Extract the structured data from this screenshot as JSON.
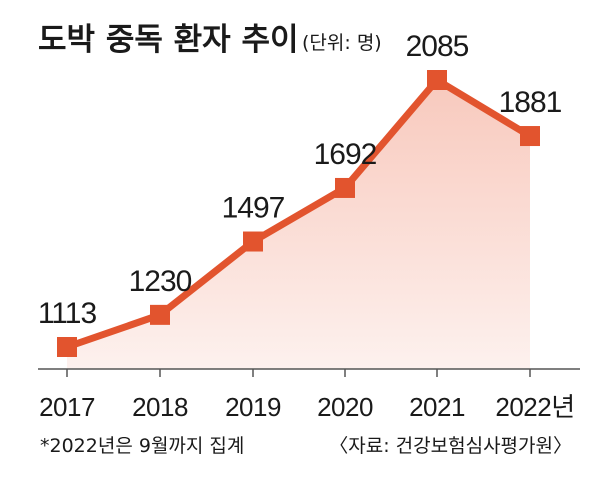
{
  "title": "도박 중독 환자 추이",
  "unit_note": "(단위: 명)",
  "footnote": "*2022년은 9월까지 집계",
  "source": "〈자료: 건강보험심사평가원〉",
  "colors": {
    "line": "#e2542e",
    "marker": "#e2542e",
    "area_top": "#f8c9bd",
    "area_bottom": "#fdf1ee",
    "axis": "#555555"
  },
  "chart_data": {
    "type": "line",
    "categories": [
      "2017",
      "2018",
      "2019",
      "2020",
      "2021",
      "2022년"
    ],
    "series": [
      {
        "values": [
          1113,
          1230,
          1497,
          1692,
          2085,
          1881
        ]
      }
    ],
    "data_labels": [
      "1113",
      "1230",
      "1497",
      "1692",
      "2085",
      "1881"
    ],
    "area_fill": true,
    "grid": false,
    "legend": "none"
  }
}
